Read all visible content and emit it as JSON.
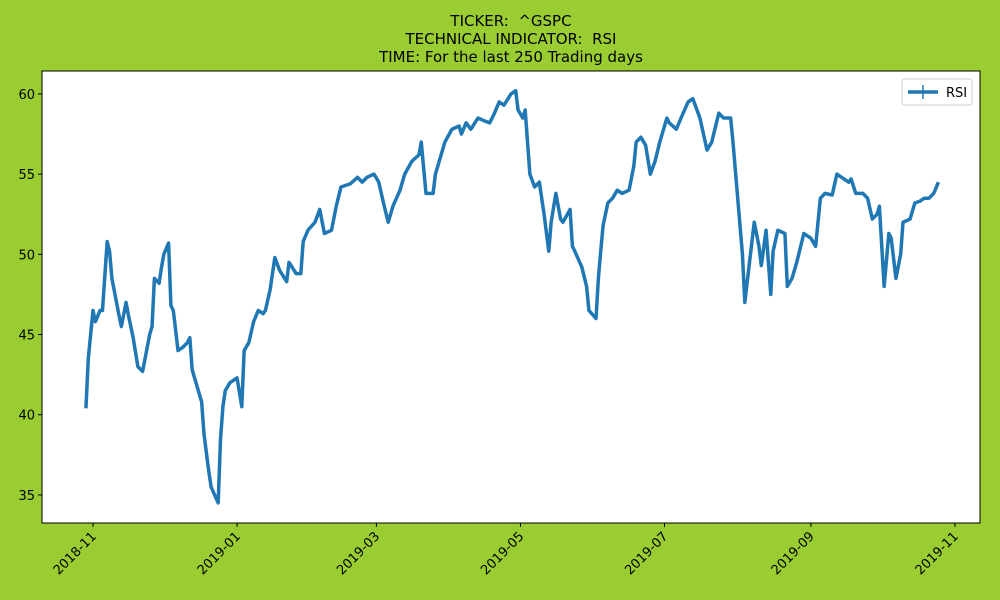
{
  "chart_data": {
    "type": "line",
    "title": [
      "TICKER:  ^GSPC",
      "TECHNICAL INDICATOR:  RSI",
      "TIME: For the last 250 Trading days"
    ],
    "x": [
      -3,
      -2,
      0,
      1,
      3,
      4,
      6,
      7,
      8,
      11,
      12,
      14,
      15,
      17,
      19,
      21,
      24,
      25,
      26,
      28,
      29,
      30,
      32,
      33,
      34,
      36,
      38,
      40,
      41,
      42,
      44,
      46,
      47,
      49,
      50,
      53,
      54,
      55,
      56,
      58,
      60,
      61,
      63,
      64,
      66,
      68,
      70,
      72,
      73,
      75,
      77,
      79,
      82,
      83,
      86,
      88,
      89,
      91,
      94,
      96,
      98,
      101,
      103,
      105,
      109,
      112,
      114,
      116,
      119,
      121,
      123,
      125,
      127,
      130,
      132,
      135,
      138,
      139,
      141,
      144,
      145,
      147,
      149,
      152,
      155,
      156,
      158,
      160,
      163,
      166,
      168,
      170,
      172,
      174,
      177,
      179,
      180,
      182,
      183,
      185,
      187,
      189,
      191,
      193,
      194,
      196,
      198,
      199,
      202,
      203,
      204,
      207,
      209,
      210,
      213,
      214,
      215,
      216,
      218,
      220,
      222,
      224,
      227,
      229,
      230,
      232,
      234,
      236,
      238,
      240,
      243,
      244,
      247,
      249,
      252,
      254,
      257,
      260,
      262,
      265,
      267,
      270,
      271,
      273,
      275,
      276,
      278,
      280,
      282,
      283,
      285,
      287,
      288,
      290,
      293,
      294,
      296,
      298,
      301,
      304,
      306,
      308,
      310,
      313,
      315,
      317,
      320,
      321,
      323,
      326,
      328,
      330,
      332,
      333,
      335,
      337,
      338,
      340,
      342,
      343,
      346,
      348,
      350,
      352,
      354,
      356,
      358
    ],
    "series": [
      {
        "name": "RSI",
        "color": "#1f77b4",
        "values": [
          40.4,
          43.5,
          46.5,
          45.8,
          46.5,
          46.5,
          50.8,
          50.2,
          48.5,
          46.2,
          45.5,
          47.0,
          46.2,
          44.8,
          43.0,
          42.7,
          45.0,
          45.5,
          48.5,
          48.2,
          49.2,
          50.0,
          50.7,
          46.8,
          46.5,
          44.0,
          44.2,
          44.5,
          44.8,
          42.8,
          41.8,
          40.8,
          38.8,
          36.5,
          35.5,
          34.5,
          38.5,
          40.5,
          41.5,
          42.0,
          42.2,
          42.3,
          40.5,
          44.0,
          44.5,
          45.8,
          46.5,
          46.3,
          46.5,
          47.8,
          49.8,
          49.0,
          48.3,
          49.5,
          48.8,
          48.8,
          50.8,
          51.5,
          52.0,
          52.8,
          51.3,
          51.5,
          53.0,
          54.2,
          54.4,
          54.8,
          54.5,
          54.8,
          55.0,
          54.5,
          53.2,
          52.0,
          53.0,
          54.0,
          55.0,
          55.8,
          56.2,
          57.0,
          53.8,
          53.8,
          55.0,
          56.0,
          57.0,
          57.8,
          58.0,
          57.5,
          58.2,
          57.8,
          58.5,
          58.3,
          58.2,
          58.8,
          59.5,
          59.3,
          60.0,
          60.2,
          59.0,
          58.5,
          59.0,
          55.0,
          54.2,
          54.5,
          52.5,
          50.2,
          52.0,
          53.8,
          52.2,
          52.0,
          52.8,
          50.5,
          50.2,
          49.2,
          48.0,
          46.5,
          46.0,
          48.5,
          50.2,
          51.8,
          53.2,
          53.5,
          54.0,
          53.8,
          54.0,
          55.5,
          57.0,
          57.3,
          56.8,
          55.0,
          55.8,
          57.0,
          58.5,
          58.2,
          57.8,
          58.5,
          59.5,
          59.7,
          58.5,
          56.5,
          57.0,
          58.8,
          58.5,
          58.5,
          57.0,
          53.5,
          50.0,
          47.0,
          49.5,
          52.0,
          50.5,
          49.3,
          51.5,
          47.5,
          50.2,
          51.5,
          51.3,
          48.0,
          48.5,
          49.5,
          51.3,
          51.0,
          50.5,
          53.5,
          53.8,
          53.7,
          55.0,
          54.8,
          54.5,
          54.7,
          53.8,
          53.8,
          53.5,
          52.2,
          52.5,
          53.0,
          48.0,
          51.3,
          51.0,
          48.5,
          50.0,
          52.0,
          52.2,
          53.2,
          53.3,
          53.5,
          53.5,
          53.8,
          54.5
        ]
      }
    ],
    "xlim": [
      -21.6,
      375.6
    ],
    "xticks": [
      {
        "value": 0,
        "label": "2018-11"
      },
      {
        "value": 61,
        "label": "2019-01"
      },
      {
        "value": 120,
        "label": "2019-03"
      },
      {
        "value": 181,
        "label": "2019-05"
      },
      {
        "value": 242,
        "label": "2019-07"
      },
      {
        "value": 304,
        "label": "2019-09"
      },
      {
        "value": 365,
        "label": "2019-11"
      }
    ],
    "ylim": [
      33.25,
      61.43
    ],
    "yticks": [
      35,
      40,
      45,
      50,
      55,
      60
    ],
    "legend": "upper right",
    "grid": false
  }
}
